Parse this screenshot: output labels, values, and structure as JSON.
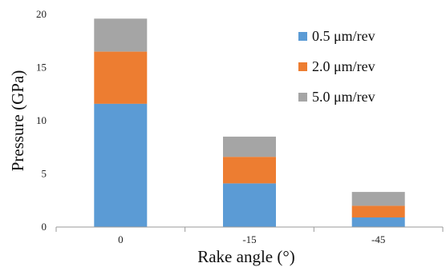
{
  "chart_data": {
    "type": "bar",
    "stacked": true,
    "categories": [
      "0",
      "-15",
      "-45"
    ],
    "series": [
      {
        "name": "0.5 μm/rev",
        "values": [
          11.6,
          4.1,
          0.9
        ],
        "color": "#5B9BD5"
      },
      {
        "name": "2.0 μm/rev",
        "values": [
          4.9,
          2.5,
          1.1
        ],
        "color": "#ED7D31"
      },
      {
        "name": "5.0 μm/rev",
        "values": [
          3.1,
          1.9,
          1.3
        ],
        "color": "#A5A5A5"
      }
    ],
    "xlabel": "Rake angle (°)",
    "ylabel": "Pressure  (GPa)",
    "ylim": [
      0,
      20
    ],
    "yticks": [
      "0",
      "5",
      "10",
      "15",
      "20"
    ],
    "grid": false,
    "legend_position": "top-right"
  }
}
